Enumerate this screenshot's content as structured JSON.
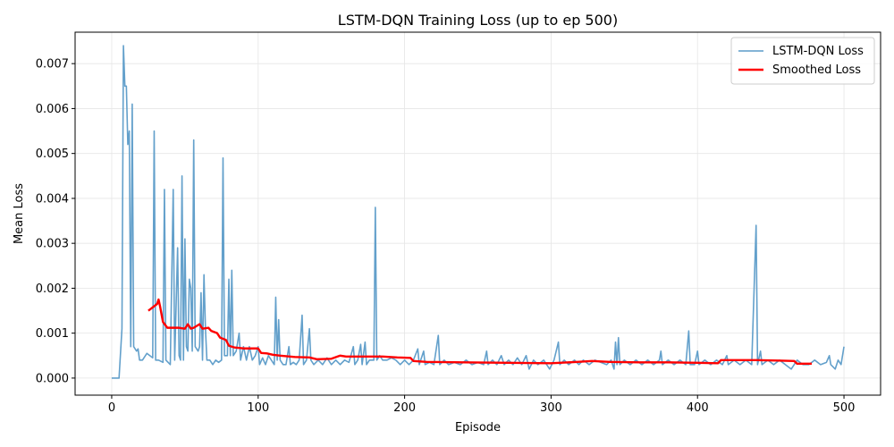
{
  "chart_data": {
    "type": "line",
    "title": "LSTM-DQN Training Loss (up to ep 500)",
    "xlabel": "Episode",
    "ylabel": "Mean Loss",
    "xlim": [
      -25,
      525
    ],
    "ylim": [
      -0.00038,
      0.0077
    ],
    "xticks": [
      0,
      100,
      200,
      300,
      400,
      500
    ],
    "yticks": [
      0.0,
      0.001,
      0.002,
      0.003,
      0.004,
      0.005,
      0.006,
      0.007
    ],
    "ytick_labels": [
      "0.000",
      "0.001",
      "0.002",
      "0.003",
      "0.004",
      "0.005",
      "0.006",
      "0.007"
    ],
    "grid": true,
    "legend_position": "top-right",
    "series": [
      {
        "name": "LSTM-DQN Loss",
        "color": "#5b9bc8",
        "points": [
          [
            0,
            0.0
          ],
          [
            5,
            0.0
          ],
          [
            7,
            0.0011
          ],
          [
            8,
            0.0074
          ],
          [
            9,
            0.0065
          ],
          [
            10,
            0.0065
          ],
          [
            11,
            0.0052
          ],
          [
            12,
            0.0055
          ],
          [
            13,
            0.0007
          ],
          [
            14,
            0.0061
          ],
          [
            15,
            0.0007
          ],
          [
            17,
            0.0006
          ],
          [
            18,
            0.00065
          ],
          [
            19,
            0.0004
          ],
          [
            21,
            0.0004
          ],
          [
            24,
            0.00055
          ],
          [
            26,
            0.0005
          ],
          [
            28,
            0.00045
          ],
          [
            29,
            0.0055
          ],
          [
            30,
            0.0004
          ],
          [
            32,
            0.0004
          ],
          [
            35,
            0.00035
          ],
          [
            36,
            0.0042
          ],
          [
            37,
            0.0004
          ],
          [
            40,
            0.0003
          ],
          [
            42,
            0.0042
          ],
          [
            43,
            0.0004
          ],
          [
            45,
            0.0029
          ],
          [
            46,
            0.0005
          ],
          [
            47,
            0.0004
          ],
          [
            48,
            0.0045
          ],
          [
            49,
            0.0004
          ],
          [
            50,
            0.0031
          ],
          [
            51,
            0.0007
          ],
          [
            52,
            0.0006
          ],
          [
            53,
            0.0022
          ],
          [
            54,
            0.002
          ],
          [
            55,
            0.0006
          ],
          [
            56,
            0.0053
          ],
          [
            57,
            0.0007
          ],
          [
            59,
            0.0006
          ],
          [
            60,
            0.0007
          ],
          [
            61,
            0.0019
          ],
          [
            62,
            0.0004
          ],
          [
            63,
            0.0023
          ],
          [
            64,
            0.0011
          ],
          [
            65,
            0.0004
          ],
          [
            67,
            0.0004
          ],
          [
            69,
            0.0003
          ],
          [
            71,
            0.0004
          ],
          [
            73,
            0.00035
          ],
          [
            75,
            0.0004
          ],
          [
            76,
            0.0049
          ],
          [
            77,
            0.0005
          ],
          [
            79,
            0.0005
          ],
          [
            80,
            0.0022
          ],
          [
            81,
            0.0005
          ],
          [
            82,
            0.0024
          ],
          [
            83,
            0.0005
          ],
          [
            85,
            0.0006
          ],
          [
            87,
            0.001
          ],
          [
            88,
            0.0004
          ],
          [
            90,
            0.0007
          ],
          [
            92,
            0.0004
          ],
          [
            94,
            0.0007
          ],
          [
            96,
            0.0004
          ],
          [
            98,
            0.0005
          ],
          [
            100,
            0.0007
          ],
          [
            101,
            0.0003
          ],
          [
            103,
            0.00045
          ],
          [
            105,
            0.0003
          ],
          [
            107,
            0.0005
          ],
          [
            109,
            0.0004
          ],
          [
            111,
            0.0003
          ],
          [
            112,
            0.0018
          ],
          [
            113,
            0.0004
          ],
          [
            114,
            0.0013
          ],
          [
            115,
            0.0004
          ],
          [
            117,
            0.0003
          ],
          [
            119,
            0.0003
          ],
          [
            121,
            0.0007
          ],
          [
            122,
            0.0003
          ],
          [
            124,
            0.00035
          ],
          [
            126,
            0.0003
          ],
          [
            128,
            0.0004
          ],
          [
            130,
            0.0014
          ],
          [
            131,
            0.0003
          ],
          [
            133,
            0.0004
          ],
          [
            135,
            0.0011
          ],
          [
            136,
            0.0004
          ],
          [
            138,
            0.0003
          ],
          [
            141,
            0.0004
          ],
          [
            144,
            0.0003
          ],
          [
            147,
            0.00045
          ],
          [
            150,
            0.0003
          ],
          [
            153,
            0.0004
          ],
          [
            156,
            0.0003
          ],
          [
            159,
            0.0004
          ],
          [
            162,
            0.00035
          ],
          [
            165,
            0.0007
          ],
          [
            166,
            0.0003
          ],
          [
            168,
            0.0004
          ],
          [
            170,
            0.00075
          ],
          [
            171,
            0.0003
          ],
          [
            173,
            0.0008
          ],
          [
            174,
            0.0003
          ],
          [
            176,
            0.0004
          ],
          [
            179,
            0.0004
          ],
          [
            180,
            0.0038
          ],
          [
            181,
            0.0004
          ],
          [
            183,
            0.0005
          ],
          [
            185,
            0.0004
          ],
          [
            188,
            0.0004
          ],
          [
            191,
            0.00045
          ],
          [
            194,
            0.0004
          ],
          [
            197,
            0.0003
          ],
          [
            200,
            0.0004
          ],
          [
            203,
            0.0003
          ],
          [
            206,
            0.0004
          ],
          [
            209,
            0.00065
          ],
          [
            210,
            0.0003
          ],
          [
            213,
            0.0006
          ],
          [
            214,
            0.0003
          ],
          [
            217,
            0.00035
          ],
          [
            220,
            0.0003
          ],
          [
            223,
            0.00095
          ],
          [
            224,
            0.0003
          ],
          [
            227,
            0.0004
          ],
          [
            230,
            0.0003
          ],
          [
            234,
            0.00035
          ],
          [
            238,
            0.0003
          ],
          [
            242,
            0.0004
          ],
          [
            246,
            0.0003
          ],
          [
            250,
            0.00035
          ],
          [
            254,
            0.0003
          ],
          [
            256,
            0.0006
          ],
          [
            257,
            0.0003
          ],
          [
            260,
            0.0004
          ],
          [
            263,
            0.0003
          ],
          [
            266,
            0.0005
          ],
          [
            268,
            0.0003
          ],
          [
            271,
            0.0004
          ],
          [
            274,
            0.0003
          ],
          [
            277,
            0.00045
          ],
          [
            280,
            0.0003
          ],
          [
            283,
            0.0005
          ],
          [
            285,
            0.0002
          ],
          [
            288,
            0.0004
          ],
          [
            291,
            0.0003
          ],
          [
            295,
            0.0004
          ],
          [
            299,
            0.0002
          ],
          [
            302,
            0.0004
          ],
          [
            305,
            0.0008
          ],
          [
            306,
            0.0003
          ],
          [
            309,
            0.0004
          ],
          [
            312,
            0.0003
          ],
          [
            316,
            0.0004
          ],
          [
            319,
            0.0003
          ],
          [
            322,
            0.0004
          ],
          [
            326,
            0.0003
          ],
          [
            330,
            0.0004
          ],
          [
            334,
            0.00035
          ],
          [
            338,
            0.0003
          ],
          [
            341,
            0.0004
          ],
          [
            343,
            0.0002
          ],
          [
            344,
            0.0008
          ],
          [
            345,
            0.0003
          ],
          [
            346,
            0.0009
          ],
          [
            347,
            0.0003
          ],
          [
            350,
            0.0004
          ],
          [
            354,
            0.0003
          ],
          [
            358,
            0.0004
          ],
          [
            362,
            0.0003
          ],
          [
            366,
            0.0004
          ],
          [
            370,
            0.0003
          ],
          [
            374,
            0.0004
          ],
          [
            375,
            0.0006
          ],
          [
            376,
            0.0003
          ],
          [
            380,
            0.0004
          ],
          [
            384,
            0.0003
          ],
          [
            388,
            0.0004
          ],
          [
            392,
            0.0003
          ],
          [
            394,
            0.00105
          ],
          [
            395,
            0.0003
          ],
          [
            398,
            0.0003
          ],
          [
            400,
            0.0006
          ],
          [
            401,
            0.0003
          ],
          [
            405,
            0.0004
          ],
          [
            409,
            0.0003
          ],
          [
            413,
            0.0004
          ],
          [
            417,
            0.0003
          ],
          [
            420,
            0.0005
          ],
          [
            421,
            0.0003
          ],
          [
            425,
            0.0004
          ],
          [
            429,
            0.0003
          ],
          [
            433,
            0.0004
          ],
          [
            437,
            0.0003
          ],
          [
            440,
            0.0034
          ],
          [
            441,
            0.0003
          ],
          [
            443,
            0.0006
          ],
          [
            444,
            0.0003
          ],
          [
            448,
            0.0004
          ],
          [
            452,
            0.0003
          ],
          [
            456,
            0.0004
          ],
          [
            460,
            0.0003
          ],
          [
            464,
            0.0002
          ],
          [
            468,
            0.0004
          ],
          [
            472,
            0.0003
          ],
          [
            476,
            0.0003
          ],
          [
            480,
            0.0004
          ],
          [
            484,
            0.0003
          ],
          [
            488,
            0.00035
          ],
          [
            490,
            0.0005
          ],
          [
            491,
            0.0003
          ],
          [
            494,
            0.0002
          ],
          [
            496,
            0.0004
          ],
          [
            498,
            0.0003
          ],
          [
            500,
            0.0007
          ]
        ]
      },
      {
        "name": "Smoothed Loss",
        "color": "#ff0000",
        "points": [
          [
            25,
            0.0015
          ],
          [
            27,
            0.00155
          ],
          [
            29,
            0.0016
          ],
          [
            31,
            0.00165
          ],
          [
            32,
            0.00175
          ],
          [
            33,
            0.0016
          ],
          [
            35,
            0.00125
          ],
          [
            38,
            0.00112
          ],
          [
            42,
            0.00112
          ],
          [
            46,
            0.00112
          ],
          [
            50,
            0.0011
          ],
          [
            52,
            0.0012
          ],
          [
            54,
            0.0011
          ],
          [
            56,
            0.00112
          ],
          [
            60,
            0.0012
          ],
          [
            62,
            0.0011
          ],
          [
            66,
            0.00112
          ],
          [
            68,
            0.00105
          ],
          [
            72,
            0.001
          ],
          [
            74,
            0.0009
          ],
          [
            78,
            0.00085
          ],
          [
            80,
            0.00072
          ],
          [
            84,
            0.00068
          ],
          [
            90,
            0.00066
          ],
          [
            100,
            0.00066
          ],
          [
            102,
            0.00056
          ],
          [
            106,
            0.00055
          ],
          [
            110,
            0.00052
          ],
          [
            115,
            0.0005
          ],
          [
            125,
            0.00047
          ],
          [
            135,
            0.00046
          ],
          [
            140,
            0.00042
          ],
          [
            150,
            0.00043
          ],
          [
            156,
            0.0005
          ],
          [
            160,
            0.00048
          ],
          [
            175,
            0.00048
          ],
          [
            185,
            0.00048
          ],
          [
            195,
            0.00046
          ],
          [
            204,
            0.00045
          ],
          [
            206,
            0.00038
          ],
          [
            215,
            0.00036
          ],
          [
            240,
            0.00035
          ],
          [
            270,
            0.00034
          ],
          [
            300,
            0.00033
          ],
          [
            318,
            0.00036
          ],
          [
            328,
            0.00038
          ],
          [
            340,
            0.00036
          ],
          [
            360,
            0.00035
          ],
          [
            380,
            0.00035
          ],
          [
            400,
            0.00034
          ],
          [
            414,
            0.00033
          ],
          [
            416,
            0.0004
          ],
          [
            425,
            0.0004
          ],
          [
            440,
            0.0004
          ],
          [
            455,
            0.00039
          ],
          [
            466,
            0.00038
          ],
          [
            468,
            0.00032
          ],
          [
            478,
            0.00032
          ]
        ]
      }
    ]
  }
}
